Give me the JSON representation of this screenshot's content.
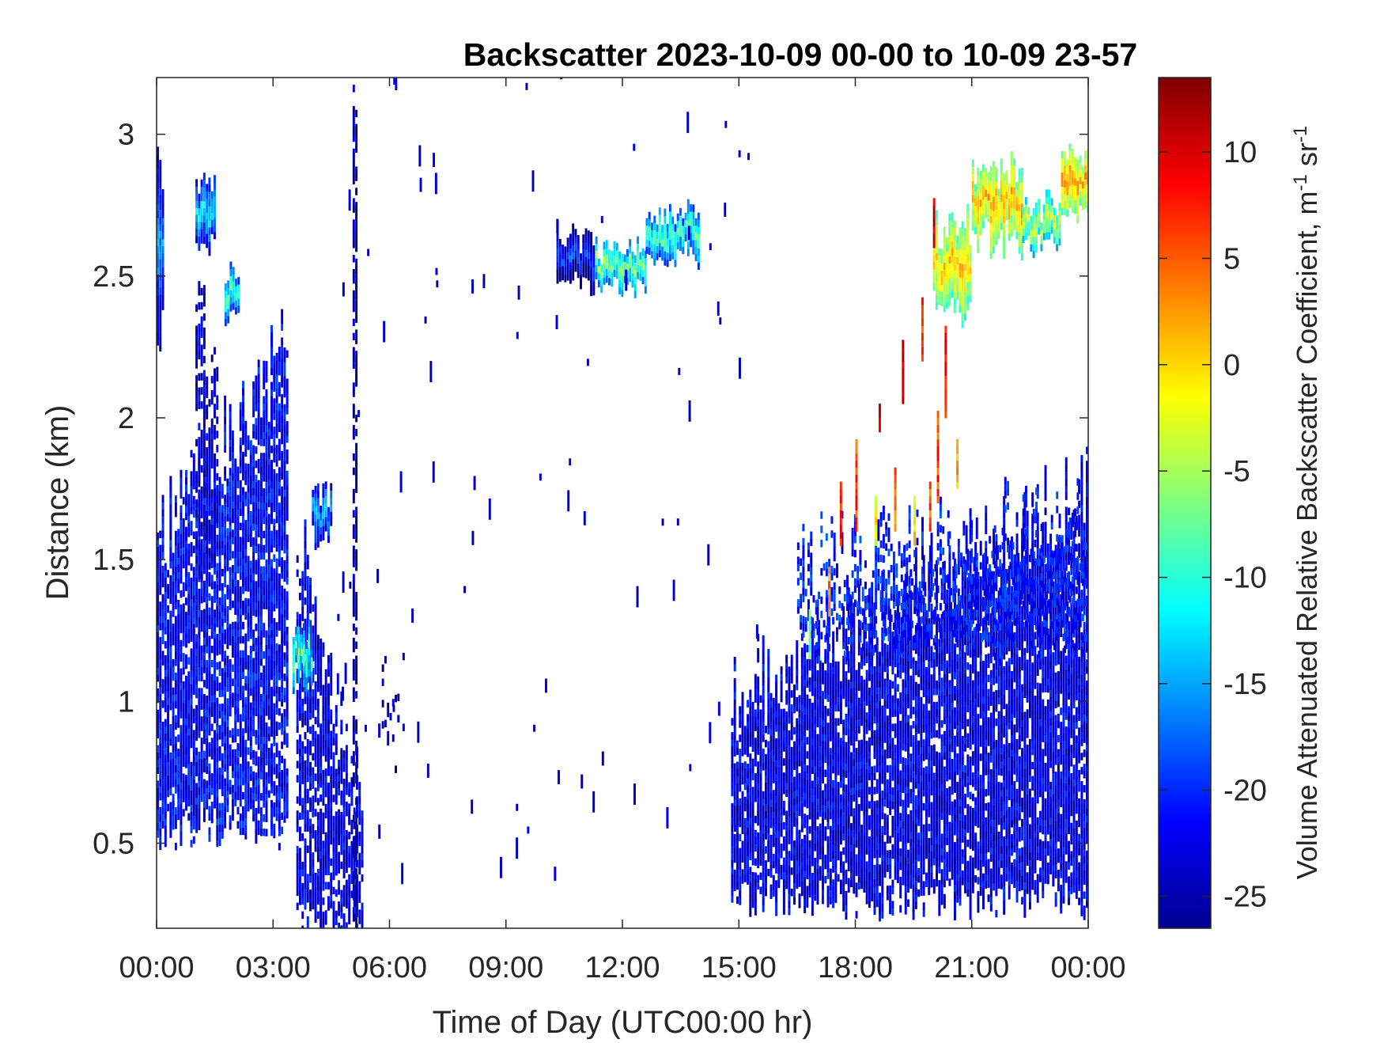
{
  "chart_data": {
    "type": "heatmap",
    "title": "Backscatter 2023-10-09 00-00 to 10-09 23-57",
    "xlabel": "Time of Day (UTC00:00 hr)",
    "ylabel": "Distance (km)",
    "colorbar_label": "Volume Attenuated Relative Backscatter Coefficient, m",
    "colorbar_label_sup1": "-1",
    "colorbar_label_mid": " sr",
    "colorbar_label_sup2": "-1",
    "xlim_hours": [
      0,
      24
    ],
    "ylim_km": [
      0.2,
      3.2
    ],
    "clim": [
      -26.5,
      13.5
    ],
    "colormap": "jet",
    "grid": false,
    "x_ticks": [
      {
        "hour": 0,
        "label": "00:00"
      },
      {
        "hour": 3,
        "label": "03:00"
      },
      {
        "hour": 6,
        "label": "06:00"
      },
      {
        "hour": 9,
        "label": "09:00"
      },
      {
        "hour": 12,
        "label": "12:00"
      },
      {
        "hour": 15,
        "label": "15:00"
      },
      {
        "hour": 18,
        "label": "18:00"
      },
      {
        "hour": 21,
        "label": "21:00"
      },
      {
        "hour": 24,
        "label": "00:00"
      }
    ],
    "y_ticks": [
      {
        "value": 0.5,
        "label": "0.5"
      },
      {
        "value": 1,
        "label": "1"
      },
      {
        "value": 1.5,
        "label": "1.5"
      },
      {
        "value": 2,
        "label": "2"
      },
      {
        "value": 2.5,
        "label": "2.5"
      },
      {
        "value": 3,
        "label": "3"
      }
    ],
    "colorbar_ticks": [
      {
        "value": 10,
        "label": "10"
      },
      {
        "value": 5,
        "label": "5"
      },
      {
        "value": 0,
        "label": "0"
      },
      {
        "value": -5,
        "label": "-5"
      },
      {
        "value": -10,
        "label": "-10"
      },
      {
        "value": -15,
        "label": "-15"
      },
      {
        "value": -20,
        "label": "-20"
      },
      {
        "value": -25,
        "label": "-25"
      }
    ],
    "regions": [
      {
        "name": "night-boundary-layer",
        "t0": 0.0,
        "t1": 3.4,
        "z_bottom": 0.55,
        "z_top": 1.55,
        "z_top_end": 2.25,
        "value": -21,
        "density": 0.85
      },
      {
        "name": "thin-column-0200",
        "t0": 1.0,
        "t1": 1.6,
        "z_bottom": 1.5,
        "z_top": 2.3,
        "z_top_end": 2.3,
        "value": -23,
        "density": 0.6
      },
      {
        "name": "residual-layer-0430",
        "t0": 3.6,
        "t1": 5.3,
        "z_bottom": 0.2,
        "z_top": 1.6,
        "z_top_end": 0.6,
        "value": -22,
        "density": 0.75
      },
      {
        "name": "vertical-streak-0510",
        "t0": 5.05,
        "t1": 5.15,
        "z_bottom": 0.2,
        "z_top": 3.2,
        "z_top_end": 3.2,
        "value": -25,
        "density": 0.7
      },
      {
        "name": "morning-fragments",
        "t0": 5.8,
        "t1": 6.6,
        "z_bottom": 0.8,
        "z_top": 1.1,
        "z_top_end": 1.1,
        "value": -24,
        "density": 0.15
      },
      {
        "name": "afternoon-mixed-layer",
        "t0": 14.8,
        "t1": 24.0,
        "z_bottom": 0.3,
        "z_top": 1.0,
        "z_top_end": 1.75,
        "value": -22,
        "density": 0.88
      },
      {
        "name": "convective-top",
        "t0": 16.5,
        "t1": 24.0,
        "z_bottom": 1.2,
        "z_top": 1.5,
        "z_top_end": 1.65,
        "value": -20,
        "density": 0.5
      }
    ],
    "cloud_layers": [
      {
        "name": "cloud-0030",
        "t0": 0.0,
        "t1": 0.15,
        "z_bottom": 2.2,
        "z_top": 3.0,
        "value": -15
      },
      {
        "name": "cloud-0120",
        "t0": 1.0,
        "t1": 1.5,
        "z_bottom": 2.6,
        "z_top": 2.85,
        "value": -12
      },
      {
        "name": "cloud-0200",
        "t0": 1.75,
        "t1": 2.1,
        "z_bottom": 2.35,
        "z_top": 2.5,
        "value": -9
      },
      {
        "name": "cloud-0330",
        "t0": 3.5,
        "t1": 4.0,
        "z_bottom": 1.05,
        "z_top": 1.25,
        "value": -7
      },
      {
        "name": "cloud-0430",
        "t0": 4.0,
        "t1": 4.5,
        "z_bottom": 1.55,
        "z_top": 1.75,
        "value": -13
      },
      {
        "name": "cloud-1030",
        "t0": 10.3,
        "t1": 11.3,
        "z_bottom": 2.45,
        "z_top": 2.65,
        "value": -18
      },
      {
        "name": "cloud-1200",
        "t0": 11.3,
        "t1": 12.6,
        "z_bottom": 2.45,
        "z_top": 2.6,
        "value": -6
      },
      {
        "name": "cloud-1330",
        "t0": 12.6,
        "t1": 14.0,
        "z_bottom": 2.55,
        "z_top": 2.72,
        "value": -8
      },
      {
        "name": "cloud-2000",
        "t0": 20.0,
        "t1": 21.0,
        "z_bottom": 2.35,
        "z_top": 2.7,
        "value": 1
      },
      {
        "name": "cloud-2130",
        "t0": 21.0,
        "t1": 22.3,
        "z_bottom": 2.6,
        "z_top": 2.9,
        "value": 2
      },
      {
        "name": "cloud-2230",
        "t0": 22.3,
        "t1": 23.3,
        "z_bottom": 2.6,
        "z_top": 2.75,
        "value": -3
      },
      {
        "name": "cloud-2330",
        "t0": 23.3,
        "t1": 24.0,
        "z_bottom": 2.7,
        "z_top": 2.95,
        "value": 3
      }
    ],
    "plume_streaks": [
      {
        "t": 16.8,
        "z_bottom": 1.15,
        "z_top": 1.3,
        "value": -8
      },
      {
        "t": 17.3,
        "z_bottom": 1.3,
        "z_top": 1.45,
        "value": 3
      },
      {
        "t": 17.6,
        "z_bottom": 1.55,
        "z_top": 1.75,
        "value": 8
      },
      {
        "t": 18.0,
        "z_bottom": 1.6,
        "z_top": 1.9,
        "value": 6
      },
      {
        "t": 18.5,
        "z_bottom": 1.55,
        "z_top": 1.7,
        "value": -2
      },
      {
        "t": 18.6,
        "z_bottom": 1.95,
        "z_top": 2.05,
        "value": 9
      },
      {
        "t": 19.0,
        "z_bottom": 1.6,
        "z_top": 1.8,
        "value": 4
      },
      {
        "t": 19.2,
        "z_bottom": 2.05,
        "z_top": 2.25,
        "value": 10
      },
      {
        "t": 19.5,
        "z_bottom": 1.55,
        "z_top": 1.7,
        "value": 0
      },
      {
        "t": 19.7,
        "z_bottom": 2.2,
        "z_top": 2.4,
        "value": 7
      },
      {
        "t": 19.9,
        "z_bottom": 1.6,
        "z_top": 1.75,
        "value": 5
      },
      {
        "t": 20.0,
        "z_bottom": 2.6,
        "z_top": 2.75,
        "value": 11
      },
      {
        "t": 20.1,
        "z_bottom": 1.7,
        "z_top": 2.0,
        "value": 6
      },
      {
        "t": 20.3,
        "z_bottom": 2.0,
        "z_top": 2.3,
        "value": 8
      },
      {
        "t": 20.6,
        "z_bottom": 1.75,
        "z_top": 1.9,
        "value": 2
      }
    ]
  }
}
